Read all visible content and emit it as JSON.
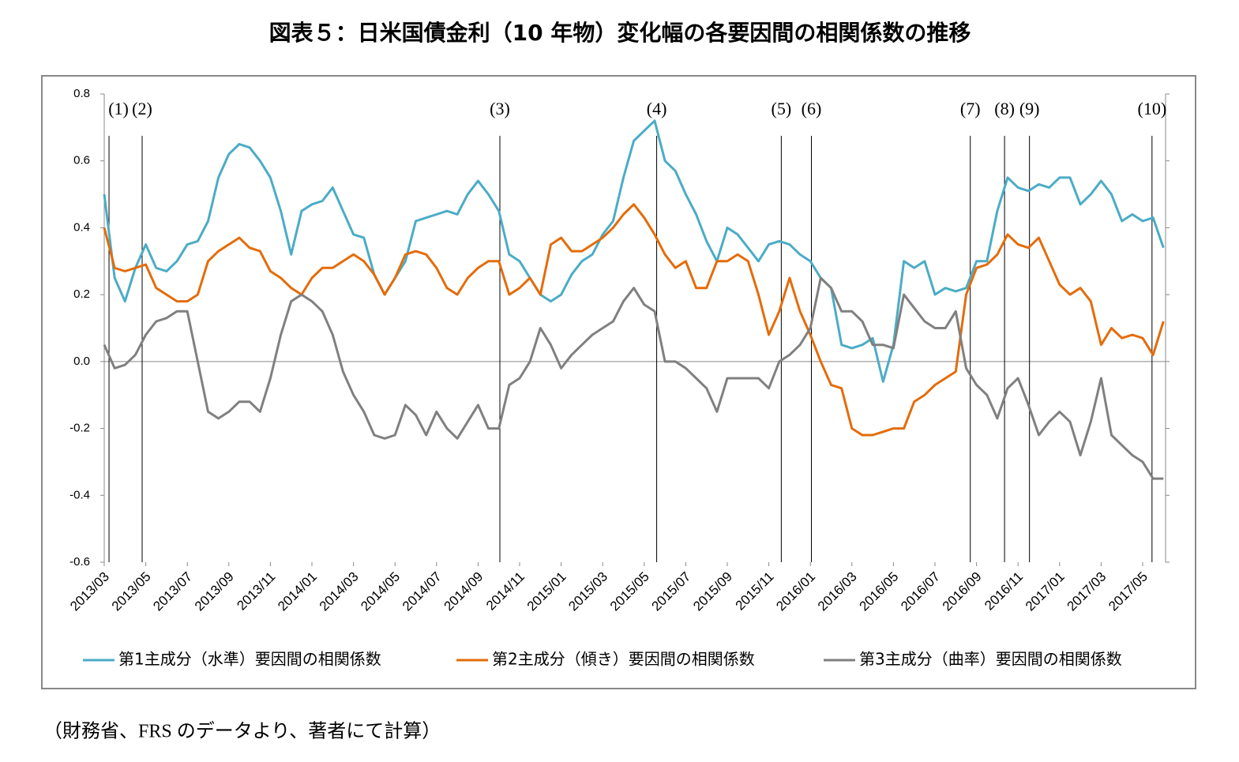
{
  "chart_data": {
    "type": "line",
    "title": "図表５：日米国債金利（10 年物）変化幅の各要因間の相関係数の推移",
    "note": "（財務省、FRS のデータより、著者にて計算）",
    "categories": [
      "2013/03",
      null,
      null,
      null,
      "2013/05",
      null,
      null,
      null,
      "2013/07",
      null,
      null,
      null,
      "2013/09",
      null,
      null,
      null,
      "2013/11",
      null,
      null,
      null,
      "2014/01",
      null,
      null,
      null,
      "2014/03",
      null,
      null,
      null,
      "2014/05",
      null,
      null,
      null,
      "2014/07",
      null,
      null,
      null,
      "2014/09",
      null,
      null,
      null,
      "2014/11",
      null,
      null,
      null,
      "2015/01",
      null,
      null,
      null,
      "2015/03",
      null,
      null,
      null,
      "2015/05",
      null,
      null,
      null,
      "2015/07",
      null,
      null,
      null,
      "2015/09",
      null,
      null,
      null,
      "2015/11",
      null,
      null,
      null,
      "2016/01",
      null,
      null,
      null,
      "2016/03",
      null,
      null,
      null,
      "2016/05",
      null,
      null,
      null,
      "2016/07",
      null,
      null,
      null,
      "2016/09",
      null,
      null,
      null,
      "2016/11",
      null,
      null,
      null,
      "2017/01",
      null,
      null,
      null,
      "2017/03",
      null,
      null,
      null,
      "2017/05",
      null,
      null
    ],
    "series": [
      {
        "name": "第1主成分（水準）要因間の相関係数",
        "color": "#4bacc6",
        "values": [
          0.5,
          0.25,
          0.18,
          0.28,
          0.35,
          0.28,
          0.27,
          0.3,
          0.35,
          0.36,
          0.42,
          0.55,
          0.62,
          0.65,
          0.64,
          0.6,
          0.55,
          0.45,
          0.32,
          0.45,
          0.47,
          0.48,
          0.52,
          0.45,
          0.38,
          0.37,
          0.26,
          0.2,
          0.25,
          0.3,
          0.42,
          0.43,
          0.44,
          0.45,
          0.44,
          0.5,
          0.54,
          0.5,
          0.45,
          0.32,
          0.3,
          0.25,
          0.2,
          0.18,
          0.2,
          0.26,
          0.3,
          0.32,
          0.38,
          0.42,
          0.55,
          0.66,
          0.69,
          0.72,
          0.6,
          0.57,
          0.5,
          0.44,
          0.36,
          0.3,
          0.4,
          0.38,
          0.34,
          0.3,
          0.35,
          0.36,
          0.35,
          0.32,
          0.3,
          0.25,
          0.22,
          0.05,
          0.04,
          0.05,
          0.07,
          -0.06,
          0.05,
          0.3,
          0.28,
          0.3,
          0.2,
          0.22,
          0.21,
          0.22,
          0.3,
          0.3,
          0.45,
          0.55,
          0.52,
          0.51,
          0.53,
          0.52,
          0.55,
          0.55,
          0.47,
          0.5,
          0.54,
          0.5,
          0.42,
          0.44,
          0.42,
          0.43,
          0.34
        ]
      },
      {
        "name": "第2主成分（傾き）要因間の相関係数",
        "color": "#e46c0a",
        "values": [
          0.4,
          0.28,
          0.27,
          0.28,
          0.29,
          0.22,
          0.2,
          0.18,
          0.18,
          0.2,
          0.3,
          0.33,
          0.35,
          0.37,
          0.34,
          0.33,
          0.27,
          0.25,
          0.22,
          0.2,
          0.25,
          0.28,
          0.28,
          0.3,
          0.32,
          0.3,
          0.26,
          0.2,
          0.25,
          0.32,
          0.33,
          0.32,
          0.28,
          0.22,
          0.2,
          0.25,
          0.28,
          0.3,
          0.3,
          0.2,
          0.22,
          0.25,
          0.2,
          0.35,
          0.37,
          0.33,
          0.33,
          0.35,
          0.37,
          0.4,
          0.44,
          0.47,
          0.43,
          0.38,
          0.32,
          0.28,
          0.3,
          0.22,
          0.22,
          0.3,
          0.3,
          0.32,
          0.3,
          0.2,
          0.08,
          0.15,
          0.25,
          0.15,
          0.08,
          0.0,
          -0.07,
          -0.08,
          -0.2,
          -0.22,
          -0.22,
          -0.21,
          -0.2,
          -0.2,
          -0.12,
          -0.1,
          -0.07,
          -0.05,
          -0.03,
          0.2,
          0.28,
          0.29,
          0.32,
          0.38,
          0.35,
          0.34,
          0.37,
          0.3,
          0.23,
          0.2,
          0.22,
          0.18,
          0.05,
          0.1,
          0.07,
          0.08,
          0.07,
          0.02,
          0.12
        ]
      },
      {
        "name": "第3主成分（曲率）要因間の相関係数",
        "color": "#808080",
        "values": [
          0.05,
          -0.02,
          -0.01,
          0.02,
          0.08,
          0.12,
          0.13,
          0.15,
          0.15,
          0.0,
          -0.15,
          -0.17,
          -0.15,
          -0.12,
          -0.12,
          -0.15,
          -0.05,
          0.08,
          0.18,
          0.2,
          0.18,
          0.15,
          0.08,
          -0.03,
          -0.1,
          -0.15,
          -0.22,
          -0.23,
          -0.22,
          -0.13,
          -0.16,
          -0.22,
          -0.15,
          -0.2,
          -0.23,
          -0.18,
          -0.13,
          -0.2,
          -0.2,
          -0.07,
          -0.05,
          0.0,
          0.1,
          0.05,
          -0.02,
          0.02,
          0.05,
          0.08,
          0.1,
          0.12,
          0.18,
          0.22,
          0.17,
          0.15,
          0.0,
          0.0,
          -0.02,
          -0.05,
          -0.08,
          -0.15,
          -0.05,
          -0.05,
          -0.05,
          -0.05,
          -0.08,
          0.0,
          0.02,
          0.05,
          0.1,
          0.25,
          0.22,
          0.15,
          0.15,
          0.12,
          0.05,
          0.05,
          0.04,
          0.2,
          0.16,
          0.12,
          0.1,
          0.1,
          0.15,
          -0.02,
          -0.07,
          -0.1,
          -0.17,
          -0.08,
          -0.05,
          -0.13,
          -0.22,
          -0.18,
          -0.15,
          -0.18,
          -0.28,
          -0.18,
          -0.05,
          -0.22,
          -0.25,
          -0.28,
          -0.3,
          -0.35,
          -0.35
        ]
      }
    ],
    "events": [
      {
        "label": "(1)",
        "x": 0.46
      },
      {
        "label": "(2)",
        "x": 3.65
      },
      {
        "label": "(3)",
        "x": 38.1
      },
      {
        "label": "(4)",
        "x": 53.2
      },
      {
        "label": "(5)",
        "x": 65.2
      },
      {
        "label": "(6)",
        "x": 68.1
      },
      {
        "label": "(7)",
        "x": 83.4
      },
      {
        "label": "(8)",
        "x": 86.7
      },
      {
        "label": "(9)",
        "x": 89.1
      },
      {
        "label": "(10)",
        "x": 100.9
      }
    ],
    "ylim": [
      -0.6,
      0.8
    ],
    "yticks": [
      -0.6,
      -0.4,
      -0.2,
      {
        "value": 0,
        "label": "0.0"
      },
      0.2,
      0.4,
      0.6,
      0.8
    ],
    "negative_tick_color": "#c00000",
    "legend": "bottom"
  }
}
